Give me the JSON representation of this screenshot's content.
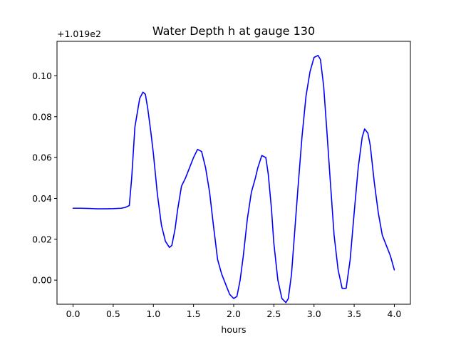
{
  "chart_data": {
    "type": "line",
    "title": "Water Depth h at gauge 130",
    "xlabel": "hours",
    "ylabel": "",
    "y_offset_label": "+1.019e2",
    "xlim": [
      -0.2,
      4.2
    ],
    "ylim": [
      -0.0118,
      0.1169
    ],
    "x_ticks": [
      0.0,
      0.5,
      1.0,
      1.5,
      2.0,
      2.5,
      3.0,
      3.5,
      4.0
    ],
    "x_tick_labels": [
      "0.0",
      "0.5",
      "1.0",
      "1.5",
      "2.0",
      "2.5",
      "3.0",
      "3.5",
      "4.0"
    ],
    "y_ticks": [
      0.0,
      0.02,
      0.04,
      0.06,
      0.08,
      0.1
    ],
    "y_tick_labels": [
      "0.00",
      "0.02",
      "0.04",
      "0.06",
      "0.08",
      "0.10"
    ],
    "grid": false,
    "legend": "none",
    "series": [
      {
        "color": "#0000ff",
        "x": [
          0.0,
          0.1,
          0.2,
          0.3,
          0.4,
          0.5,
          0.6,
          0.65,
          0.7,
          0.73,
          0.77,
          0.8,
          0.83,
          0.87,
          0.9,
          0.93,
          0.97,
          1.0,
          1.05,
          1.1,
          1.15,
          1.2,
          1.23,
          1.27,
          1.3,
          1.35,
          1.4,
          1.45,
          1.5,
          1.55,
          1.6,
          1.65,
          1.7,
          1.75,
          1.8,
          1.85,
          1.9,
          1.95,
          2.0,
          2.04,
          2.08,
          2.12,
          2.17,
          2.22,
          2.27,
          2.3,
          2.35,
          2.4,
          2.43,
          2.47,
          2.5,
          2.55,
          2.6,
          2.65,
          2.68,
          2.72,
          2.76,
          2.8,
          2.85,
          2.9,
          2.95,
          3.0,
          3.05,
          3.08,
          3.12,
          3.16,
          3.2,
          3.25,
          3.3,
          3.35,
          3.4,
          3.45,
          3.5,
          3.55,
          3.6,
          3.63,
          3.67,
          3.7,
          3.75,
          3.8,
          3.85,
          3.9,
          3.95,
          4.0
        ],
        "y": [
          0.0352,
          0.0352,
          0.0351,
          0.0349,
          0.0349,
          0.035,
          0.0352,
          0.0356,
          0.0365,
          0.05,
          0.075,
          0.082,
          0.089,
          0.092,
          0.091,
          0.084,
          0.072,
          0.062,
          0.042,
          0.027,
          0.019,
          0.016,
          0.017,
          0.025,
          0.034,
          0.046,
          0.05,
          0.055,
          0.06,
          0.064,
          0.063,
          0.055,
          0.043,
          0.026,
          0.01,
          0.003,
          -0.002,
          -0.007,
          -0.009,
          -0.008,
          0.0,
          0.012,
          0.03,
          0.043,
          0.05,
          0.055,
          0.061,
          0.06,
          0.052,
          0.035,
          0.018,
          -0.0,
          -0.009,
          -0.011,
          -0.009,
          0.003,
          0.024,
          0.045,
          0.07,
          0.09,
          0.102,
          0.109,
          0.11,
          0.108,
          0.095,
          0.073,
          0.05,
          0.022,
          0.005,
          -0.004,
          -0.004,
          0.01,
          0.033,
          0.055,
          0.07,
          0.074,
          0.072,
          0.066,
          0.048,
          0.033,
          0.022,
          0.017,
          0.012,
          0.005
        ]
      }
    ]
  }
}
